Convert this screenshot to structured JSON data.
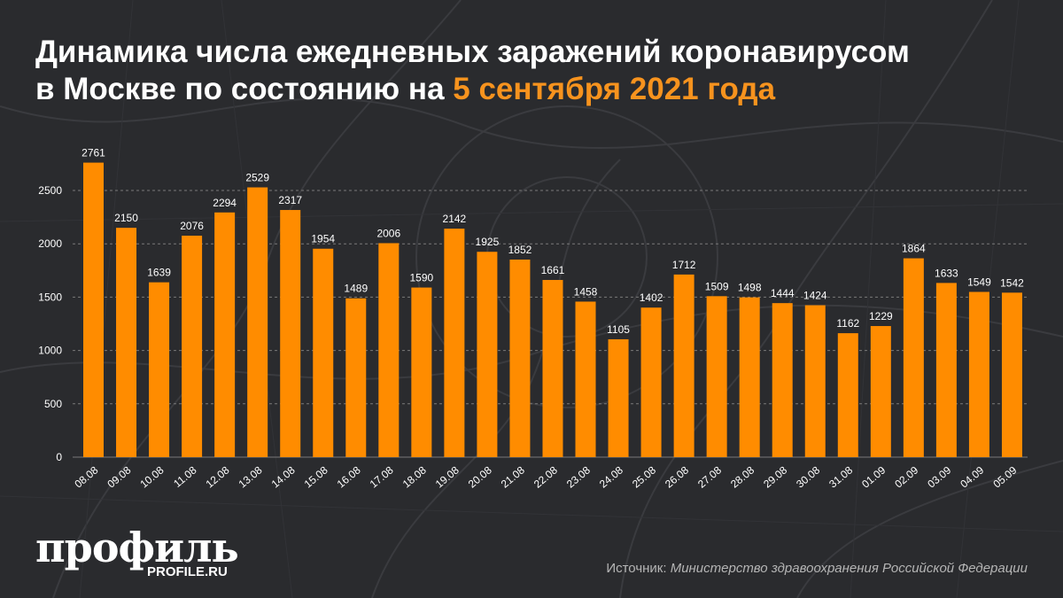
{
  "title": {
    "line1": "Динамика числа ежедневных заражений коронавирусом",
    "line2_prefix": "в Москве по состоянию на ",
    "line2_accent": "5 сентября 2021 года"
  },
  "logo": {
    "main": "профиль",
    "sub": "PROFILE.RU"
  },
  "source": {
    "prefix": "Источник: ",
    "value": "Министерство здравоохранения Российской Федерации"
  },
  "colors": {
    "background": "#2a2b2e",
    "bar": "#ff8c00",
    "text": "#ffffff",
    "accent": "#f7931e",
    "grid": "#7a7a7a"
  },
  "chart_data": {
    "type": "bar",
    "categories": [
      "08.08",
      "09.08",
      "10.08",
      "11.08",
      "12.08",
      "13.08",
      "14.08",
      "15.08",
      "16.08",
      "17.08",
      "18.08",
      "19.08",
      "20.08",
      "21.08",
      "22.08",
      "23.08",
      "24.08",
      "25.08",
      "26.08",
      "27.08",
      "28.08",
      "29.08",
      "30.08",
      "31.08",
      "01.09",
      "02.09",
      "03.09",
      "04.09",
      "05.09"
    ],
    "values": [
      2761,
      2150,
      1639,
      2076,
      2294,
      2529,
      2317,
      1954,
      1489,
      2006,
      1590,
      2142,
      1925,
      1852,
      1661,
      1458,
      1105,
      1402,
      1712,
      1509,
      1498,
      1444,
      1424,
      1162,
      1229,
      1864,
      1633,
      1549,
      1542
    ],
    "yticks": [
      0,
      500,
      1000,
      1500,
      2000,
      2500
    ],
    "ylim": [
      0,
      2900
    ],
    "grid": true,
    "data_labels": true
  }
}
